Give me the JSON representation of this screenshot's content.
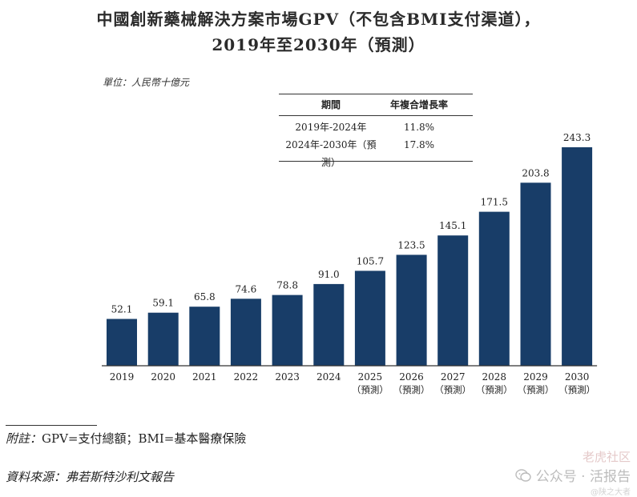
{
  "title": {
    "line1": "中國創新藥械解決方案市場GPV（不包含BMI支付渠道），",
    "line2": "2019年至2030年（預測）"
  },
  "unit_label": "單位：人民幣十億元",
  "cagr_table": {
    "headers": [
      "期間",
      "年複合增長率"
    ],
    "rows": [
      {
        "period": "2019年-2024年",
        "rate": "11.8%"
      },
      {
        "period": "2024年-2030年（預測）",
        "rate": "17.8%"
      }
    ]
  },
  "chart_data": {
    "type": "bar",
    "categories": [
      "2019",
      "2020",
      "2021",
      "2022",
      "2023",
      "2024",
      "2025",
      "2026",
      "2027",
      "2028",
      "2029",
      "2030"
    ],
    "forecast_note": "（預測）",
    "forecast_from_index": 6,
    "values": [
      52.1,
      59.1,
      65.8,
      74.6,
      78.8,
      91.0,
      105.7,
      123.5,
      145.1,
      171.5,
      203.8,
      243.3
    ],
    "value_labels": [
      "52.1",
      "59.1",
      "65.8",
      "74.6",
      "78.8",
      "91.0",
      "105.7",
      "123.5",
      "145.1",
      "171.5",
      "203.8",
      "243.3"
    ],
    "bar_color": "#183d68",
    "ylim": [
      0,
      243.3
    ],
    "grid": false,
    "legend": "none"
  },
  "footnote": {
    "label": "附註：",
    "text": "GPV=支付總額；BMI=基本醫療保險"
  },
  "source": "資料來源：弗若斯特沙利文報告",
  "watermark": {
    "line1": "老虎社区",
    "line2": "公众号 · 活报告",
    "line3": "@陕之大者"
  }
}
